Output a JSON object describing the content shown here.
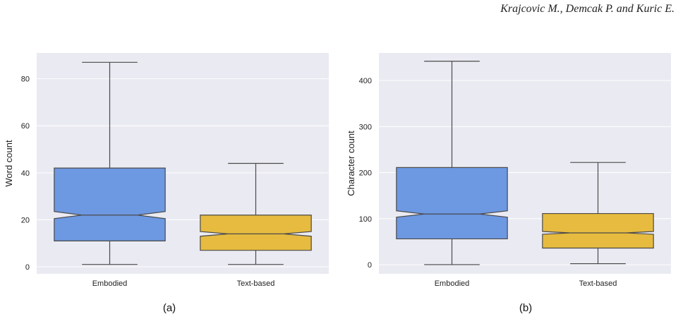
{
  "header": {
    "authors": "Krajcovic M., Demcak P. and Kuric E."
  },
  "chart_data": [
    {
      "type": "box",
      "caption": "(a)",
      "ylabel": "Word count",
      "ylim": [
        -3,
        91
      ],
      "yticks": [
        0,
        20,
        40,
        60,
        80
      ],
      "grid": true,
      "notched": true,
      "categories": [
        "Embodied",
        "Text-based"
      ],
      "colors": [
        "#6d98e2",
        "#e6bb3f"
      ],
      "boxes": [
        {
          "category": "Embodied",
          "whisker_low": 1,
          "q1": 11,
          "median": 22,
          "q3": 42,
          "whisker_high": 87,
          "notch_low": 20.5,
          "notch_high": 23.5
        },
        {
          "category": "Text-based",
          "whisker_low": 1,
          "q1": 7,
          "median": 14,
          "q3": 22,
          "whisker_high": 44,
          "notch_low": 13,
          "notch_high": 15
        }
      ]
    },
    {
      "type": "box",
      "caption": "(b)",
      "ylabel": "Character count",
      "ylim": [
        -20,
        460
      ],
      "yticks": [
        0,
        100,
        200,
        300,
        400
      ],
      "grid": true,
      "notched": true,
      "categories": [
        "Embodied",
        "Text-based"
      ],
      "colors": [
        "#6d98e2",
        "#e6bb3f"
      ],
      "boxes": [
        {
          "category": "Embodied",
          "whisker_low": 0,
          "q1": 56,
          "median": 110,
          "q3": 211,
          "whisker_high": 442,
          "notch_low": 103,
          "notch_high": 117
        },
        {
          "category": "Text-based",
          "whisker_low": 2,
          "q1": 36,
          "median": 69,
          "q3": 111,
          "whisker_high": 222,
          "notch_low": 66,
          "notch_high": 72
        }
      ]
    }
  ]
}
